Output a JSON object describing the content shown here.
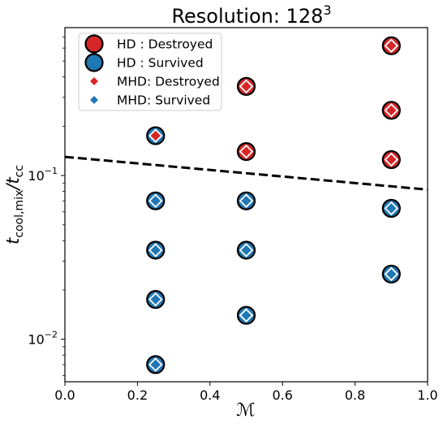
{
  "chart_data": {
    "type": "scatter",
    "title": "Resolution: 128",
    "title_superscript": "3",
    "xlabel": "ℳ",
    "ylabel": "t_cool,mix / t_cc",
    "xlim": [
      0.0,
      1.0
    ],
    "ylim": [
      0.0055,
      0.8
    ],
    "yscale": "log",
    "grid": false,
    "legend_position": "upper-left",
    "x_ticks": [
      {
        "value": 0.0,
        "label": "0.0"
      },
      {
        "value": 0.2,
        "label": "0.2"
      },
      {
        "value": 0.4,
        "label": "0.4"
      },
      {
        "value": 0.6,
        "label": "0.6"
      },
      {
        "value": 0.8,
        "label": "0.8"
      },
      {
        "value": 1.0,
        "label": "1.0"
      }
    ],
    "y_ticks": [
      {
        "value": 0.01,
        "base": "10",
        "exp": "−2"
      },
      {
        "value": 0.1,
        "base": "10",
        "exp": "−1"
      }
    ],
    "colors": {
      "destroyed": "#d62728",
      "survived": "#1f77b4",
      "threshold": "#000000"
    },
    "series": [
      {
        "name": "HD : Destroyed",
        "marker": "circle",
        "color": "#d62728",
        "points": [
          {
            "x": 0.5,
            "y": 0.35
          },
          {
            "x": 0.5,
            "y": 0.14
          },
          {
            "x": 0.9,
            "y": 0.62
          },
          {
            "x": 0.9,
            "y": 0.25
          },
          {
            "x": 0.9,
            "y": 0.125
          }
        ]
      },
      {
        "name": "HD : Survived",
        "marker": "circle",
        "color": "#1f77b4",
        "points": [
          {
            "x": 0.25,
            "y": 0.175
          },
          {
            "x": 0.25,
            "y": 0.07
          },
          {
            "x": 0.25,
            "y": 0.035
          },
          {
            "x": 0.25,
            "y": 0.0175
          },
          {
            "x": 0.25,
            "y": 0.007
          },
          {
            "x": 0.5,
            "y": 0.07
          },
          {
            "x": 0.5,
            "y": 0.035
          },
          {
            "x": 0.5,
            "y": 0.014
          },
          {
            "x": 0.9,
            "y": 0.063
          },
          {
            "x": 0.9,
            "y": 0.025
          }
        ]
      },
      {
        "name": "MHD: Destroyed",
        "marker": "diamond",
        "color": "#d62728",
        "points": [
          {
            "x": 0.25,
            "y": 0.175
          },
          {
            "x": 0.5,
            "y": 0.35
          },
          {
            "x": 0.5,
            "y": 0.14
          },
          {
            "x": 0.9,
            "y": 0.62
          },
          {
            "x": 0.9,
            "y": 0.25
          },
          {
            "x": 0.9,
            "y": 0.125
          }
        ]
      },
      {
        "name": "MHD: Survived",
        "marker": "diamond",
        "color": "#1f77b4",
        "points": [
          {
            "x": 0.25,
            "y": 0.07
          },
          {
            "x": 0.25,
            "y": 0.035
          },
          {
            "x": 0.25,
            "y": 0.0175
          },
          {
            "x": 0.25,
            "y": 0.007
          },
          {
            "x": 0.5,
            "y": 0.07
          },
          {
            "x": 0.5,
            "y": 0.035
          },
          {
            "x": 0.5,
            "y": 0.014
          },
          {
            "x": 0.9,
            "y": 0.063
          },
          {
            "x": 0.9,
            "y": 0.025
          }
        ]
      }
    ],
    "threshold_line": {
      "style": "dashed",
      "points": [
        {
          "x": 0.0,
          "y": 0.13
        },
        {
          "x": 1.0,
          "y": 0.082
        }
      ]
    }
  }
}
